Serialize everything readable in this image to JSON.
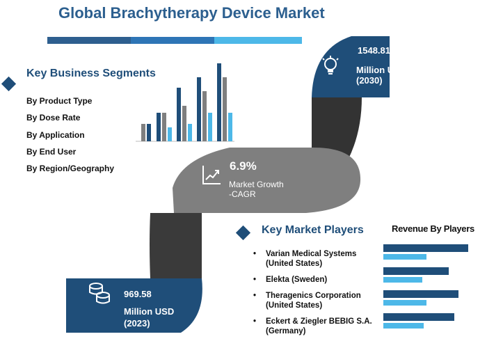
{
  "title": "Global Brachytherapy Device Market",
  "colors": {
    "dark_blue": "#1f4e79",
    "mid_blue": "#2e75b6",
    "light_blue": "#4db8e8",
    "gray_road": "#7f7f7f",
    "dark_gray": "#404040"
  },
  "segments": {
    "heading": "Key Business Segments",
    "items": [
      "By Product Type",
      "By Dose Rate",
      "By Application",
      "By End User",
      "By Region/Geography"
    ]
  },
  "market_2030": {
    "value": "1548.81",
    "unit": "Million USD",
    "year": "(2030)",
    "icon": "lightbulb-icon"
  },
  "market_2023": {
    "value": "969.58",
    "unit": "Million USD",
    "year": "(2023)",
    "icon": "coins-icon"
  },
  "cagr": {
    "value": "6.9%",
    "label_line1": "Market Growth",
    "label_line2": "-CAGR",
    "icon": "growth-chart-icon"
  },
  "players": {
    "heading": "Key Market Players",
    "bullet": "•",
    "items": [
      "Varian Medical Systems (United States)",
      "Elekta (Sweden)",
      "Theragenics Corporation (United States)",
      "Eckert & Ziegler BEBIG S.A. (Germany)"
    ]
  },
  "revenue": {
    "title": "Revenue By Players"
  }
}
